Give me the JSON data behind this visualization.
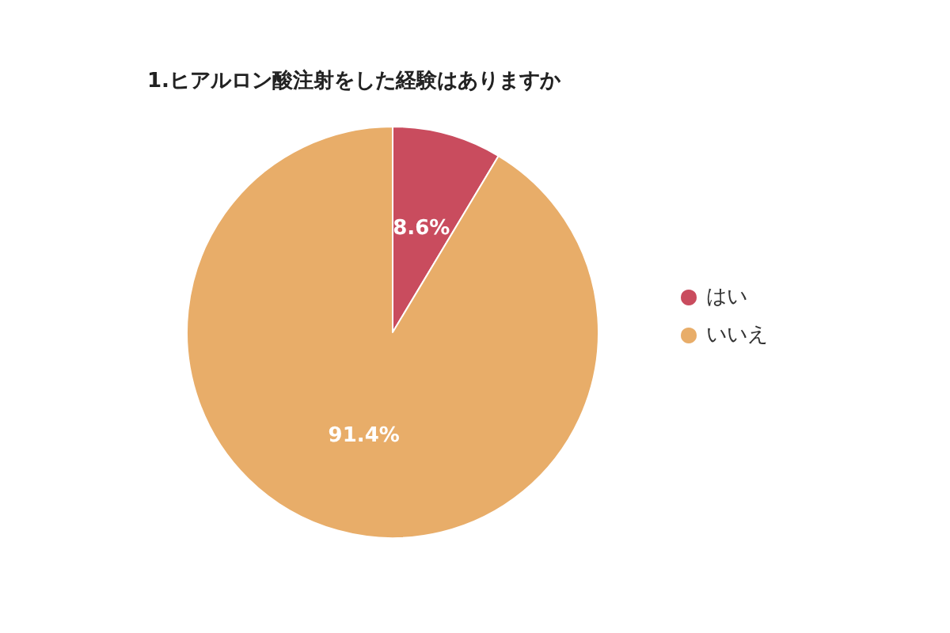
{
  "chart_data": {
    "type": "pie",
    "title": "1.ヒアルロン酸注射をした経験はありますか",
    "categories": [
      "はい",
      "いいえ"
    ],
    "values": [
      8.6,
      91.4
    ],
    "value_labels": [
      "8.6%",
      "91.4%"
    ],
    "colors": [
      "#c94c5e",
      "#e8ad69"
    ],
    "legend": "right"
  }
}
